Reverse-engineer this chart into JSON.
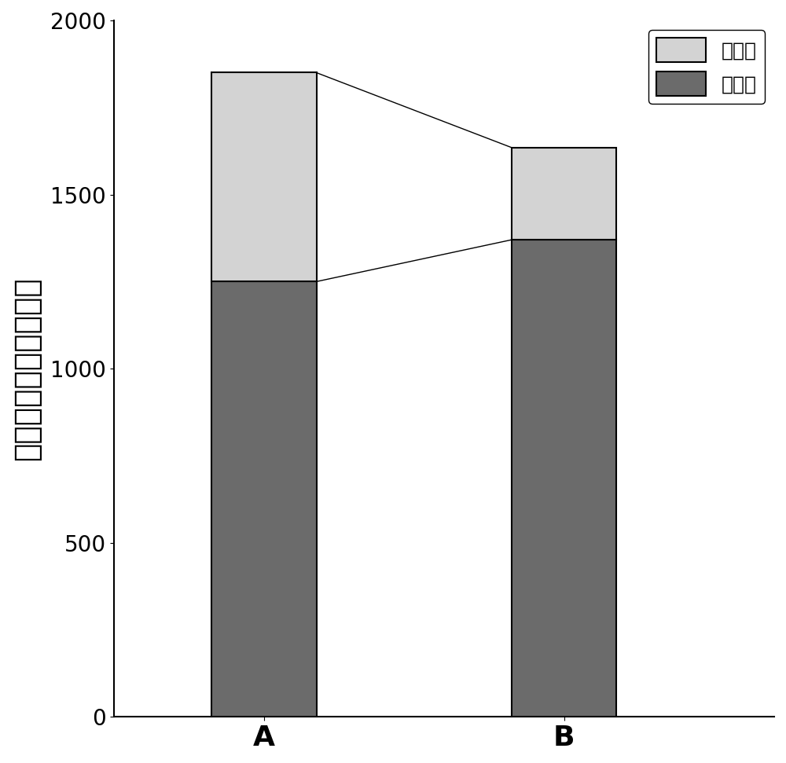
{
  "categories": [
    "A",
    "B"
  ],
  "positive_values": [
    1250,
    1370
  ],
  "negative_values": [
    600,
    265
  ],
  "positive_color": "#6b6b6b",
  "negative_color": "#d3d3d3",
  "positive_label": "正相关",
  "negative_label": "负相关",
  "ylabel": "微生物共存网络关联性",
  "ylim": [
    0,
    2000
  ],
  "yticks": [
    0,
    500,
    1000,
    1500,
    2000
  ],
  "bar_width": 0.35,
  "bar_positions": [
    1,
    2
  ],
  "xlim": [
    0.5,
    2.7
  ],
  "figsize": [
    10.0,
    9.71
  ],
  "dpi": 100,
  "legend_fontsize": 18,
  "ylabel_fontsize": 28,
  "tick_fontsize": 20,
  "xlabel_fontsize": 26,
  "edge_color": "#000000",
  "edge_linewidth": 1.5
}
